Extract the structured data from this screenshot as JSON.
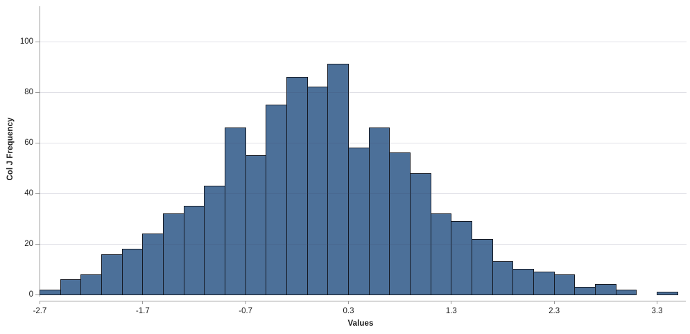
{
  "chart_data": {
    "type": "bar",
    "subtype": "histogram",
    "title": "",
    "xlabel": "Values",
    "ylabel": "Col J Frequency",
    "bins": {
      "start": -2.7,
      "width": 0.2
    },
    "counts": [
      2,
      6,
      8,
      16,
      18,
      24,
      32,
      35,
      43,
      66,
      55,
      75,
      86,
      82,
      91,
      58,
      66,
      56,
      48,
      32,
      29,
      22,
      13,
      10,
      9,
      8,
      3,
      4,
      2,
      0,
      1
    ],
    "total_count": 1000,
    "x_ticks": [
      {
        "value": -2.7,
        "label": "-2.7"
      },
      {
        "value": -1.7,
        "label": "-1.7"
      },
      {
        "value": -0.7,
        "label": "-0.7"
      },
      {
        "value": 0.3,
        "label": "0.3"
      },
      {
        "value": 1.3,
        "label": "1.3"
      },
      {
        "value": 2.3,
        "label": "2.3"
      },
      {
        "value": 3.3,
        "label": "3.3"
      }
    ],
    "y_ticks": [
      {
        "value": 0,
        "label": "0"
      },
      {
        "value": 20,
        "label": "20"
      },
      {
        "value": 40,
        "label": "40"
      },
      {
        "value": 60,
        "label": "60"
      },
      {
        "value": 80,
        "label": "80"
      },
      {
        "value": 100,
        "label": "100"
      }
    ],
    "xlim": [
      -2.7,
      3.58
    ],
    "ylim": [
      0,
      114
    ],
    "grid": "horizontal-only",
    "legend": "none",
    "colors": {
      "bar_fill": "#4C7099",
      "bar_stroke": "#141923",
      "axis_line": "#9A9A9A",
      "gridline": "#E1E1E8",
      "text": "#1A1A1A",
      "background": "#FFFFFF"
    }
  }
}
